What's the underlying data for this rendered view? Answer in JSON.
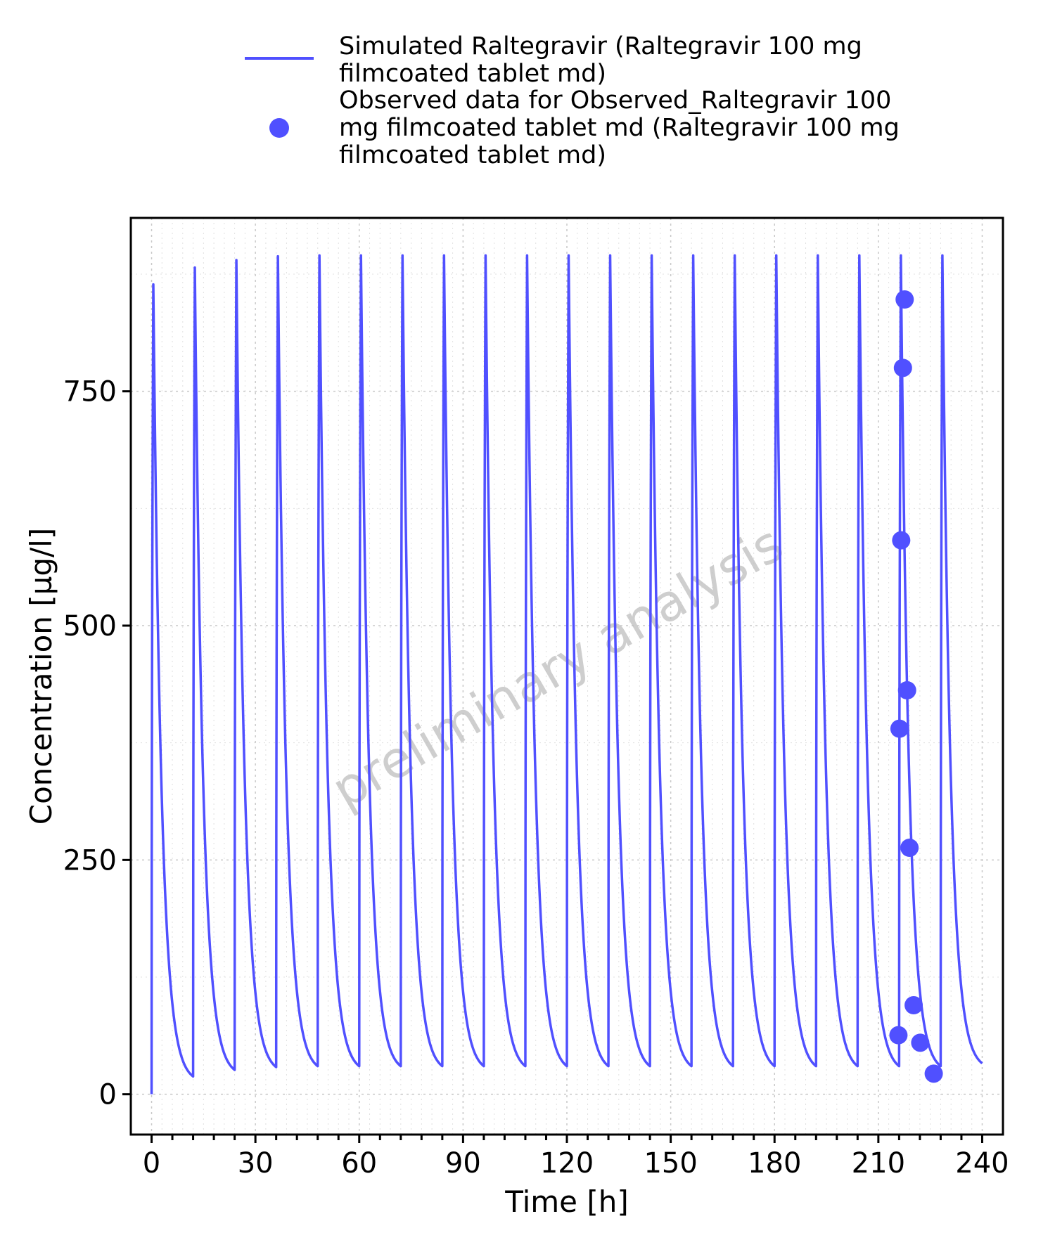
{
  "chart_data": {
    "type": "line",
    "xlabel": "Time [h]",
    "ylabel": "Concentration [µg/l]",
    "xlim": [
      -6,
      246
    ],
    "ylim": [
      -43,
      935
    ],
    "xticks": [
      0,
      30,
      60,
      90,
      120,
      150,
      180,
      210,
      240
    ],
    "yticks": [
      0,
      250,
      500,
      750
    ],
    "grid": true,
    "legend_position": "top",
    "watermark": "preliminary analysis",
    "series": [
      {
        "name": "Simulated Raltegravir (Raltegravir 100 mg filmcoated tablet md)",
        "kind": "line",
        "color": "#5050ff",
        "dosing_interval_h": 12,
        "doses": 20,
        "peaks": [
          864,
          882,
          890,
          894,
          895,
          895,
          895,
          895,
          895,
          895,
          895,
          895,
          895,
          895,
          895,
          895,
          895,
          895,
          895,
          895
        ],
        "troughs": [
          19,
          26,
          29,
          30,
          30,
          30,
          30,
          30,
          30,
          30,
          30,
          30,
          30,
          30,
          30,
          30,
          30,
          30,
          30,
          33
        ]
      },
      {
        "name": "Observed data for Observed_Raltegravir 100 mg filmcoated tablet md (Raltegravir 100 mg filmcoated tablet md)",
        "kind": "scatter",
        "color": "#5050ff",
        "points": [
          {
            "x": 215.8,
            "y": 63
          },
          {
            "x": 216.1,
            "y": 390
          },
          {
            "x": 216.6,
            "y": 591
          },
          {
            "x": 217.1,
            "y": 775
          },
          {
            "x": 217.6,
            "y": 848
          },
          {
            "x": 218.3,
            "y": 431
          },
          {
            "x": 219.0,
            "y": 263
          },
          {
            "x": 220.2,
            "y": 95
          },
          {
            "x": 222.1,
            "y": 55
          },
          {
            "x": 226.0,
            "y": 22
          }
        ]
      }
    ]
  }
}
